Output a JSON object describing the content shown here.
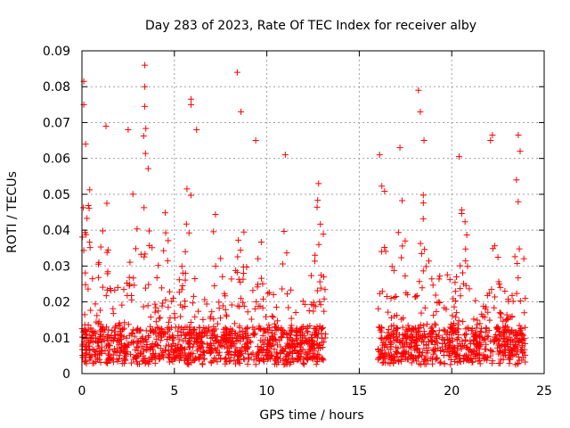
{
  "chart_data": {
    "type": "scatter",
    "title": "Day 283 of 2023, Rate Of TEC Index for receiver alby",
    "xlabel": "GPS time / hours",
    "ylabel": "ROTI / TECUs",
    "xlim": [
      0,
      25
    ],
    "ylim": [
      0,
      0.09
    ],
    "xticks": [
      0,
      5,
      10,
      15,
      20,
      25
    ],
    "xtick_labels": [
      "0",
      "5",
      "10",
      "15",
      "20",
      "25"
    ],
    "yticks": [
      0,
      0.01,
      0.02,
      0.03,
      0.04,
      0.05,
      0.06,
      0.07,
      0.08,
      0.09
    ],
    "ytick_labels": [
      "0",
      "0.01",
      "0.02",
      "0.03",
      "0.04",
      "0.05",
      "0.06",
      "0.07",
      "0.08",
      "0.09"
    ],
    "grid": true,
    "marker": "+",
    "color": "#ff0000",
    "data_coverage_hours": [
      [
        0,
        13.2
      ],
      [
        16.0,
        24.0
      ]
    ],
    "peaks": [
      {
        "x": 0.1,
        "y": 0.0815
      },
      {
        "x": 0.1,
        "y": 0.075
      },
      {
        "x": 0.2,
        "y": 0.064
      },
      {
        "x": 1.3,
        "y": 0.069
      },
      {
        "x": 2.5,
        "y": 0.068
      },
      {
        "x": 3.4,
        "y": 0.086
      },
      {
        "x": 3.4,
        "y": 0.08
      },
      {
        "x": 3.4,
        "y": 0.0745
      },
      {
        "x": 5.9,
        "y": 0.0765
      },
      {
        "x": 5.9,
        "y": 0.075
      },
      {
        "x": 6.2,
        "y": 0.068
      },
      {
        "x": 8.4,
        "y": 0.084
      },
      {
        "x": 8.6,
        "y": 0.073
      },
      {
        "x": 9.4,
        "y": 0.065
      },
      {
        "x": 11.0,
        "y": 0.061
      },
      {
        "x": 12.8,
        "y": 0.053
      },
      {
        "x": 16.1,
        "y": 0.061
      },
      {
        "x": 17.2,
        "y": 0.063
      },
      {
        "x": 18.2,
        "y": 0.079
      },
      {
        "x": 18.3,
        "y": 0.073
      },
      {
        "x": 18.5,
        "y": 0.065
      },
      {
        "x": 20.4,
        "y": 0.0605
      },
      {
        "x": 22.1,
        "y": 0.065
      },
      {
        "x": 22.2,
        "y": 0.0665
      },
      {
        "x": 23.6,
        "y": 0.0665
      },
      {
        "x": 23.7,
        "y": 0.062
      },
      {
        "x": 23.5,
        "y": 0.054
      }
    ]
  }
}
